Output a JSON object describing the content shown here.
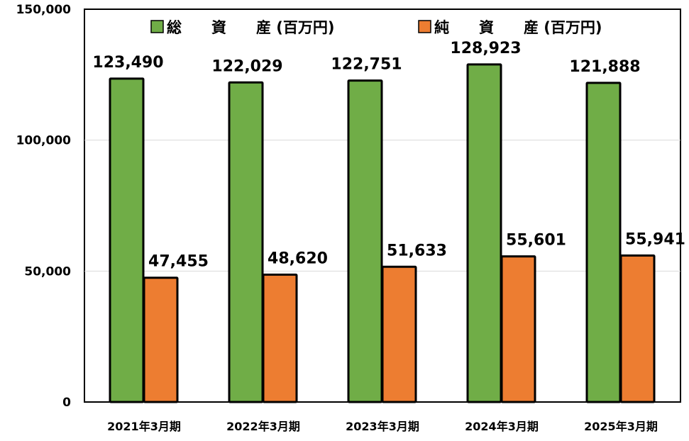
{
  "chart_data": {
    "type": "bar",
    "categories": [
      "2021年3月期",
      "2022年3月期",
      "2023年3月期",
      "2024年3月期",
      "2025年3月期"
    ],
    "series": [
      {
        "name": "総　　資　　産 (百万円)",
        "color": "#70ad47",
        "values": [
          123490,
          122029,
          122751,
          128923,
          121888
        ],
        "labels": [
          "123,490",
          "122,029",
          "122,751",
          "128,923",
          "121,888"
        ]
      },
      {
        "name": "純　　資　　産 (百万円)",
        "color": "#ed7d31",
        "values": [
          47455,
          48620,
          51633,
          55601,
          55941
        ],
        "labels": [
          "47,455",
          "48,620",
          "51,633",
          "55,601",
          "55,941"
        ]
      }
    ],
    "ylim": [
      0,
      150000
    ],
    "yticks": [
      0,
      50000,
      100000,
      150000
    ],
    "ytick_labels": [
      "0",
      "50,000",
      "100,000",
      "150,000"
    ],
    "grid": true,
    "legend_position": "top"
  }
}
